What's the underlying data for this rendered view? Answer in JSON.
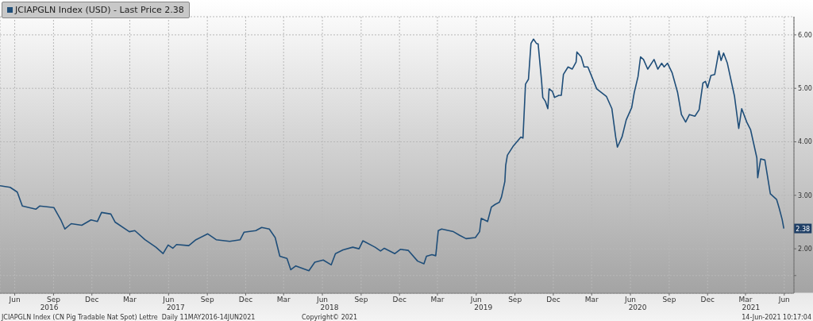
{
  "chart_data": {
    "type": "line",
    "x": [
      "2016-05-11",
      "2016-06-04",
      "2016-06-21",
      "2016-07-03",
      "2016-08-04",
      "2016-08-13",
      "2016-09-16",
      "2016-10-03",
      "2016-10-12",
      "2016-10-27",
      "2016-11-21",
      "2016-12-13",
      "2016-12-28",
      "2017-01-07",
      "2017-01-29",
      "2017-02-08",
      "2017-03-14",
      "2017-03-27",
      "2017-04-20",
      "2017-05-16",
      "2017-06-02",
      "2017-06-14",
      "2017-06-25",
      "2017-07-04",
      "2017-08-02",
      "2017-08-19",
      "2017-09-16",
      "2017-10-06",
      "2017-11-07",
      "2017-12-02",
      "2017-12-11",
      "2018-01-08",
      "2018-01-22",
      "2018-02-09",
      "2018-02-23",
      "2018-03-06",
      "2018-03-23",
      "2018-04-01",
      "2018-04-13",
      "2018-05-14",
      "2018-05-28",
      "2018-06-17",
      "2018-07-06",
      "2018-07-16",
      "2018-08-03",
      "2018-08-26",
      "2018-09-10",
      "2018-09-19",
      "2018-10-18",
      "2018-10-31",
      "2018-11-09",
      "2018-12-04",
      "2018-12-17",
      "2019-01-05",
      "2019-01-27",
      "2019-02-11",
      "2019-02-17",
      "2019-03-02",
      "2019-03-11",
      "2019-03-17",
      "2019-03-25",
      "2019-04-22",
      "2019-05-07",
      "2019-05-22",
      "2019-06-13",
      "2019-06-23",
      "2019-06-27",
      "2019-07-12",
      "2019-07-21",
      "2019-07-30",
      "2019-08-09",
      "2019-08-14",
      "2019-08-22",
      "2019-08-24",
      "2019-08-28",
      "2019-09-10",
      "2019-09-29",
      "2019-10-04",
      "2019-10-10",
      "2019-10-17",
      "2019-10-23",
      "2019-10-29",
      "2019-11-05",
      "2019-11-09",
      "2019-11-17",
      "2019-11-20",
      "2019-11-26",
      "2019-12-02",
      "2019-12-05",
      "2019-12-13",
      "2019-12-18",
      "2019-12-28",
      "2020-01-03",
      "2020-01-08",
      "2020-01-19",
      "2020-01-29",
      "2020-02-07",
      "2020-02-09",
      "2020-02-19",
      "2020-02-26",
      "2020-03-06",
      "2020-03-27",
      "2020-04-19",
      "2020-05-02",
      "2020-05-11",
      "2020-05-15",
      "2020-05-26",
      "2020-06-05",
      "2020-06-18",
      "2020-06-24",
      "2020-07-03",
      "2020-07-09",
      "2020-07-16",
      "2020-07-26",
      "2020-08-10",
      "2020-08-19",
      "2020-08-28",
      "2020-09-03",
      "2020-09-11",
      "2020-09-22",
      "2020-10-05",
      "2020-10-14",
      "2020-10-24",
      "2020-11-02",
      "2020-11-15",
      "2020-11-25",
      "2020-12-04",
      "2020-12-10",
      "2020-12-15",
      "2020-12-23",
      "2021-01-01",
      "2021-01-11",
      "2021-01-16",
      "2021-01-22",
      "2021-01-31",
      "2021-02-17",
      "2021-02-27",
      "2021-03-06",
      "2021-03-18",
      "2021-03-27",
      "2021-04-11",
      "2021-04-13",
      "2021-04-20",
      "2021-04-30",
      "2021-05-13",
      "2021-05-28",
      "2021-06-03",
      "2021-06-10",
      "2021-06-14"
    ],
    "series": [
      {
        "name": "JCIAPGLN Index (USD) - Last Price 2.38",
        "color": "#1f4e79",
        "values": [
          3.18,
          3.15,
          3.06,
          2.8,
          2.74,
          2.8,
          2.77,
          2.53,
          2.37,
          2.47,
          2.44,
          2.54,
          2.51,
          2.68,
          2.65,
          2.5,
          2.32,
          2.34,
          2.17,
          2.03,
          1.91,
          2.07,
          2.01,
          2.08,
          2.06,
          2.17,
          2.28,
          2.17,
          2.14,
          2.17,
          2.31,
          2.34,
          2.4,
          2.37,
          2.21,
          1.86,
          1.82,
          1.61,
          1.68,
          1.59,
          1.75,
          1.79,
          1.7,
          1.91,
          1.98,
          2.03,
          2.0,
          2.15,
          2.03,
          1.96,
          2.01,
          1.91,
          1.99,
          1.97,
          1.77,
          1.72,
          1.86,
          1.89,
          1.87,
          2.34,
          2.37,
          2.32,
          2.25,
          2.19,
          2.21,
          2.32,
          2.57,
          2.51,
          2.78,
          2.83,
          2.87,
          2.97,
          3.26,
          3.56,
          3.75,
          3.91,
          4.09,
          4.07,
          5.08,
          5.17,
          5.84,
          5.92,
          5.84,
          5.83,
          5.15,
          4.83,
          4.76,
          4.62,
          4.99,
          4.94,
          4.83,
          4.87,
          4.87,
          5.26,
          5.4,
          5.36,
          5.49,
          5.68,
          5.59,
          5.4,
          5.4,
          4.99,
          4.85,
          4.62,
          4.09,
          3.9,
          4.09,
          4.41,
          4.64,
          4.92,
          5.22,
          5.59,
          5.54,
          5.36,
          5.54,
          5.36,
          5.47,
          5.4,
          5.47,
          5.29,
          4.92,
          4.51,
          4.37,
          4.51,
          4.48,
          4.6,
          5.1,
          5.13,
          5.01,
          5.24,
          5.26,
          5.7,
          5.52,
          5.66,
          5.47,
          4.85,
          4.25,
          4.62,
          4.37,
          4.23,
          3.7,
          3.33,
          3.68,
          3.66,
          3.03,
          2.92,
          2.76,
          2.55,
          2.38
        ]
      }
    ],
    "xlim": [
      "2016-05-11",
      "2021-07-08"
    ],
    "xticks": [
      {
        "value": "2016-06-15",
        "label": "Jun"
      },
      {
        "value": "2016-09-15",
        "label": "Sep"
      },
      {
        "value": "2016-12-15",
        "label": "Dec"
      },
      {
        "value": "2017-03-15",
        "label": "Mar"
      },
      {
        "value": "2017-06-15",
        "label": "Jun"
      },
      {
        "value": "2017-09-15",
        "label": "Sep"
      },
      {
        "value": "2017-12-15",
        "label": "Dec"
      },
      {
        "value": "2018-03-15",
        "label": "Mar"
      },
      {
        "value": "2018-06-15",
        "label": "Jun"
      },
      {
        "value": "2018-09-15",
        "label": "Sep"
      },
      {
        "value": "2018-12-15",
        "label": "Dec"
      },
      {
        "value": "2019-03-15",
        "label": "Mar"
      },
      {
        "value": "2019-06-15",
        "label": "Jun"
      },
      {
        "value": "2019-09-15",
        "label": "Sep"
      },
      {
        "value": "2019-12-15",
        "label": "Dec"
      },
      {
        "value": "2020-03-15",
        "label": "Mar"
      },
      {
        "value": "2020-06-15",
        "label": "Jun"
      },
      {
        "value": "2020-09-15",
        "label": "Sep"
      },
      {
        "value": "2020-12-15",
        "label": "Dec"
      },
      {
        "value": "2021-03-15",
        "label": "Mar"
      },
      {
        "value": "2021-06-15",
        "label": "Jun"
      }
    ],
    "x2lim": [
      "2016-05-11",
      "2021-07-08"
    ],
    "x2ticks": [
      {
        "value": "2016-09-05",
        "label": "2016"
      },
      {
        "value": "2017-07-02",
        "label": "2017"
      },
      {
        "value": "2018-07-02",
        "label": "2018"
      },
      {
        "value": "2019-07-02",
        "label": "2019"
      },
      {
        "value": "2020-07-02",
        "label": "2020"
      },
      {
        "value": "2021-03-28",
        "label": "2021"
      }
    ],
    "ylim": [
      1.17,
      6.34
    ],
    "yticks": [
      {
        "value": 1.5,
        "label": null
      },
      {
        "value": 2,
        "label": "2.00"
      },
      {
        "value": 3,
        "label": "3.00"
      },
      {
        "value": 4,
        "label": "4.00"
      },
      {
        "value": 5,
        "label": "5.00"
      },
      {
        "value": 6,
        "label": "6.00"
      }
    ],
    "grid": true,
    "legend": "top left",
    "annotations": [
      "JCIAPGLN Index (CN Pig Tradable Nat Spot) Lettre  Daily 11MAY2016-14JUN2021",
      "Copyright© 2021",
      "14-Jun-2021 10:17:04",
      {
        "text": "2.38",
        "x": "2021-06-14",
        "y": 2.38
      }
    ]
  }
}
